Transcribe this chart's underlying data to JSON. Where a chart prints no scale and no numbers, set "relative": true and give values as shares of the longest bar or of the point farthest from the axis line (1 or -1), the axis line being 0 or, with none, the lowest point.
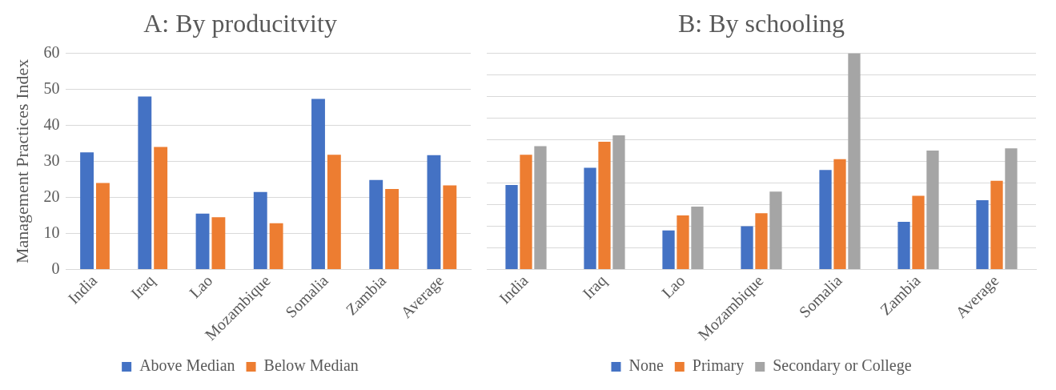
{
  "chart_data": [
    {
      "type": "bar",
      "title": "A: By producitvity",
      "ylabel": "Management Practices Index",
      "categories": [
        "India",
        "Iraq",
        "Lao",
        "Mozambique",
        "Somalia",
        "Zambia",
        "Average"
      ],
      "series": [
        {
          "name": "Above Median",
          "color": "#4472c4",
          "values": [
            32.5,
            48,
            15.5,
            21.5,
            47.3,
            24.8,
            31.7
          ]
        },
        {
          "name": "Below Median",
          "color": "#ed7d31",
          "values": [
            24,
            34,
            14.5,
            12.8,
            31.8,
            22.3,
            23.3
          ]
        }
      ],
      "ylim": [
        0,
        60
      ],
      "yticks": [
        0,
        10,
        20,
        30,
        40,
        50,
        60
      ],
      "grid": "y",
      "legend": "bottom"
    },
    {
      "type": "bar",
      "title": "B: By schooling",
      "relative": true,
      "categories": [
        "India",
        "Iraq",
        "Lao",
        "Mozambique",
        "Somalia",
        "Zambia",
        "Average"
      ],
      "series": [
        {
          "name": "None",
          "color": "#4472c4",
          "values": [
            0.39,
            0.47,
            0.18,
            0.2,
            0.46,
            0.22,
            0.32
          ]
        },
        {
          "name": "Primary",
          "color": "#ed7d31",
          "values": [
            0.53,
            0.59,
            0.25,
            0.26,
            0.51,
            0.34,
            0.41
          ]
        },
        {
          "name": "Secondary or College",
          "color": "#a5a5a5",
          "values": [
            0.57,
            0.62,
            0.29,
            0.36,
            1,
            0.55,
            0.56
          ]
        }
      ],
      "grid": "y",
      "legend": "bottom"
    }
  ]
}
